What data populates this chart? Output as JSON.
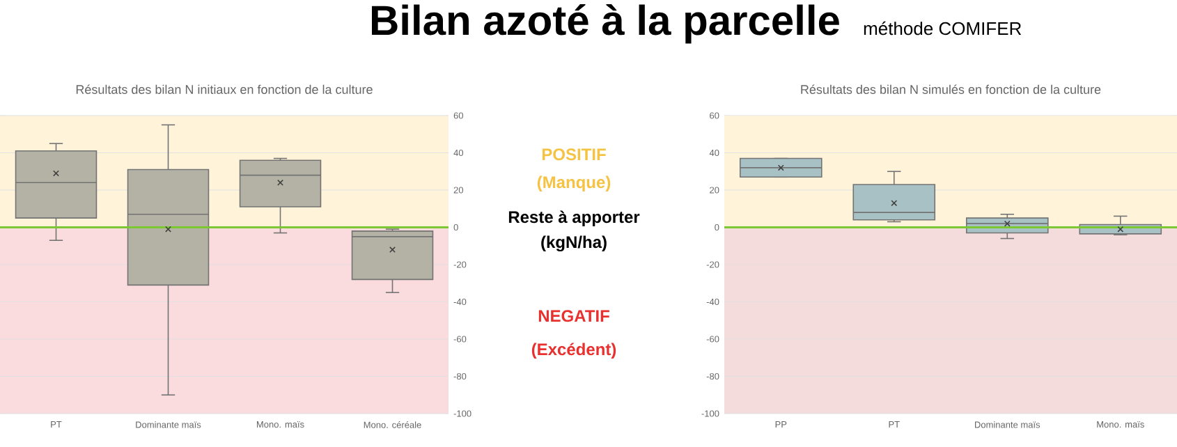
{
  "chart_data": [
    {
      "type": "other",
      "title": "Bilan azoté à la parcelle",
      "subtitle": "méthode COMIFER",
      "annotations": [
        "POSITIF",
        "(Manque)",
        "Reste à apporter",
        "(kgN/ha)",
        "NEGATIF",
        "(Excédent)"
      ]
    },
    {
      "type": "box",
      "title": "Résultats des bilan N initiaux en fonction de la culture",
      "categories": [
        "PT",
        "Dominante maïs",
        "Mono. maïs",
        "Mono. céréale"
      ],
      "boxes": [
        {
          "low": -7,
          "q1": 5,
          "median": 24,
          "q3": 41,
          "high": 45,
          "mean": 29
        },
        {
          "low": -90,
          "q1": -31,
          "median": 7,
          "q3": 31,
          "high": 55,
          "mean": -1
        },
        {
          "low": -3,
          "q1": 11,
          "median": 28,
          "q3": 36,
          "high": 37,
          "mean": 24
        },
        {
          "low": -35,
          "q1": -28,
          "median": -5,
          "q3": -2,
          "high": -1,
          "mean": -12
        }
      ],
      "color": "#b3b2a4",
      "ylim": [
        -100,
        60
      ],
      "yticks": [
        -100,
        -80,
        -60,
        -40,
        -20,
        0,
        20,
        40,
        60
      ],
      "grid": "y",
      "bands": [
        {
          "axis": "y",
          "from": 0,
          "to": 60,
          "color": "#fff4da"
        },
        {
          "axis": "y",
          "from": -100,
          "to": 0,
          "color": "#fadbde"
        }
      ],
      "ref_lines": [
        {
          "axis": "y",
          "value": 0,
          "color": "#7cc832"
        }
      ]
    },
    {
      "type": "box",
      "title": "Résultats des bilan N simulés en fonction de la culture",
      "categories": [
        "PP",
        "PT",
        "Dominante maïs",
        "Mono. maïs"
      ],
      "boxes": [
        {
          "low": 27,
          "q1": 27,
          "median": 32,
          "q3": 37,
          "high": 37,
          "mean": 32
        },
        {
          "low": 3,
          "q1": 4,
          "median": 8,
          "q3": 23,
          "high": 30,
          "mean": 13
        },
        {
          "low": -6,
          "q1": -3,
          "median": 2,
          "q3": 5,
          "high": 7,
          "mean": 2
        },
        {
          "low": -4,
          "q1": -3.5,
          "median": 0,
          "q3": 1.5,
          "high": 6,
          "mean": -1
        }
      ],
      "color": "#a8c1c4",
      "ylim": [
        -100,
        60
      ],
      "yticks": [
        -100,
        -80,
        -60,
        -40,
        -20,
        0,
        20,
        40,
        60
      ],
      "grid": "y",
      "bands": [
        {
          "axis": "y",
          "from": 0,
          "to": 60,
          "color": "#fff4da"
        },
        {
          "axis": "y",
          "from": -100,
          "to": 0,
          "color": "#f5dcdc"
        }
      ],
      "ref_lines": [
        {
          "axis": "y",
          "value": 0,
          "color": "#7cc832"
        }
      ]
    }
  ]
}
